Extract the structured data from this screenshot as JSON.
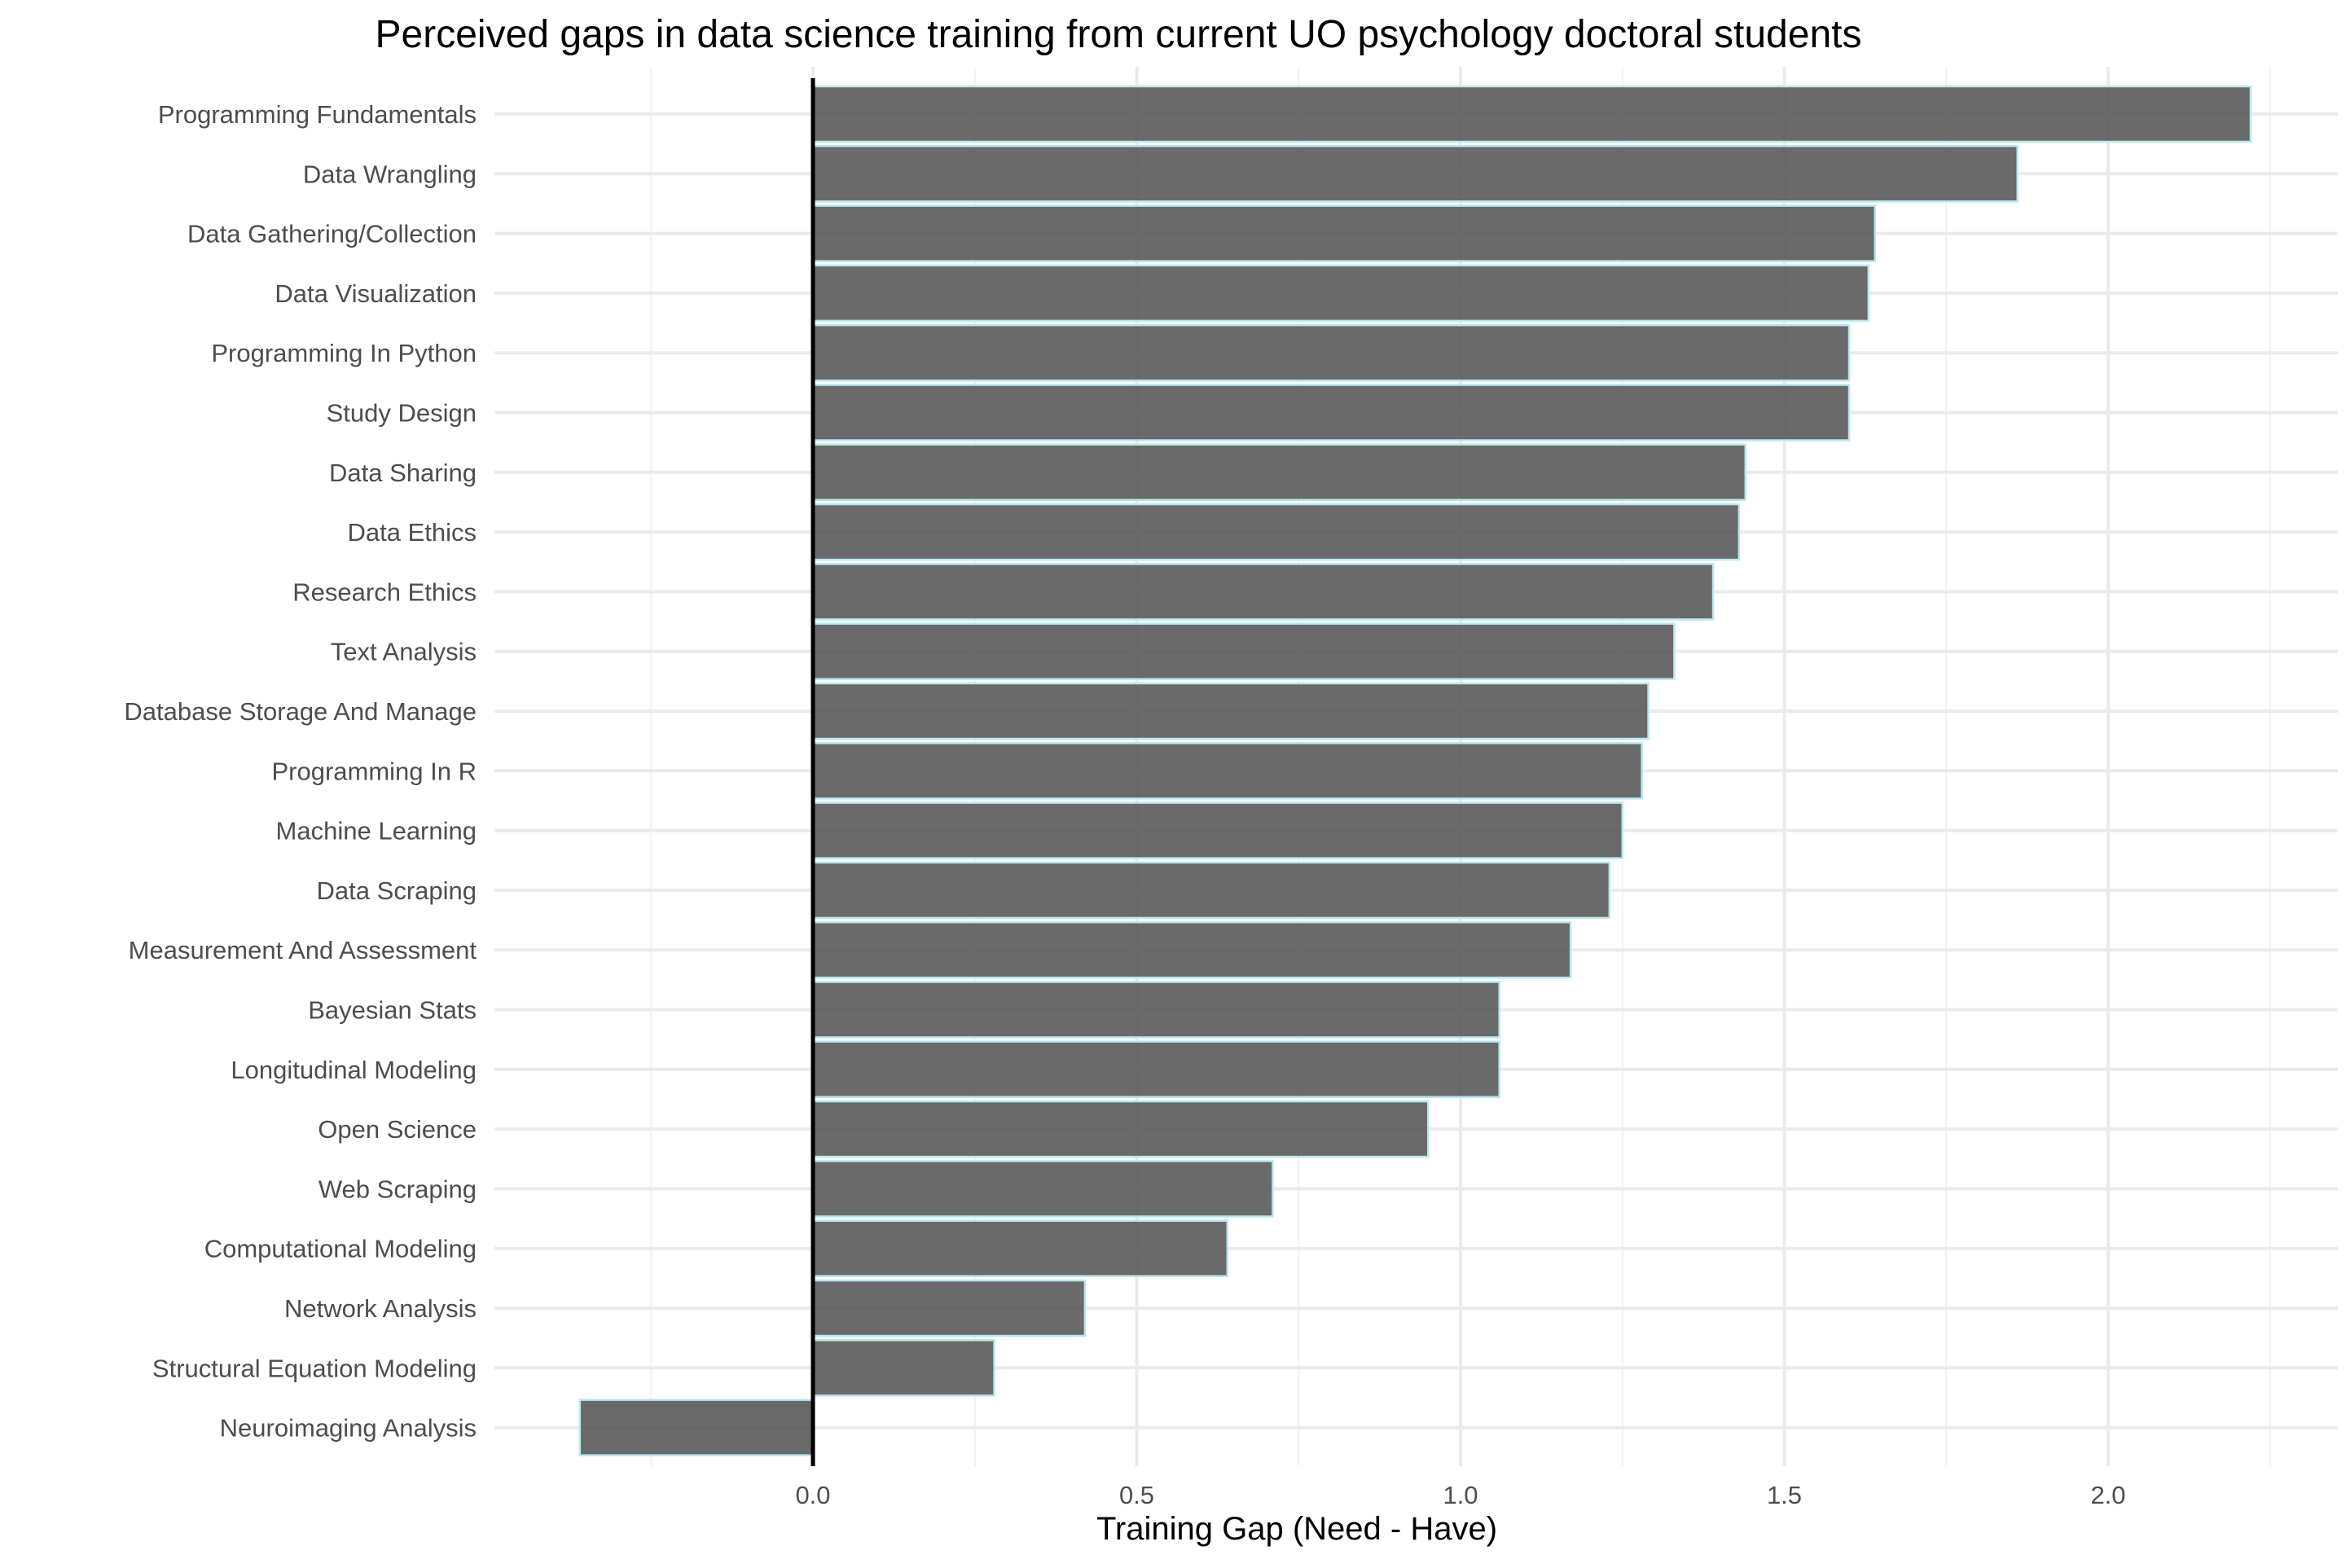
{
  "chart_data": {
    "type": "bar",
    "orientation": "horizontal",
    "title": "Perceived gaps in data science training from current UO psychology doctoral students",
    "xlabel": "Training Gap (Need - Have)",
    "ylabel": "",
    "xlim": [
      -0.49,
      2.36
    ],
    "xticks": [
      "0.0",
      "0.5",
      "1.0",
      "1.5",
      "2.0"
    ],
    "xtick_values": [
      0,
      0.5,
      1.0,
      1.5,
      2.0
    ],
    "grid": true,
    "reference_line_x": 0,
    "bar_fill": "#5a5a5a",
    "bar_outline": "#b8e8ee",
    "categories": [
      "Programming Fundamentals",
      "Data Wrangling",
      "Data Gathering/Collection",
      "Data Visualization",
      "Programming In Python",
      "Study Design",
      "Data Sharing",
      "Data Ethics",
      "Research Ethics",
      "Text Analysis",
      "Database Storage And Manage",
      "Programming In R",
      "Machine Learning",
      "Data Scraping",
      "Measurement And Assessment",
      "Bayesian Stats",
      "Longitudinal Modeling",
      "Open Science",
      "Web Scraping",
      "Computational Modeling",
      "Network Analysis",
      "Structural Equation Modeling",
      "Neuroimaging Analysis"
    ],
    "values": [
      2.22,
      1.86,
      1.64,
      1.63,
      1.6,
      1.6,
      1.44,
      1.43,
      1.39,
      1.33,
      1.29,
      1.28,
      1.25,
      1.23,
      1.17,
      1.06,
      1.06,
      0.95,
      0.71,
      0.64,
      0.42,
      0.28,
      -0.36
    ]
  }
}
